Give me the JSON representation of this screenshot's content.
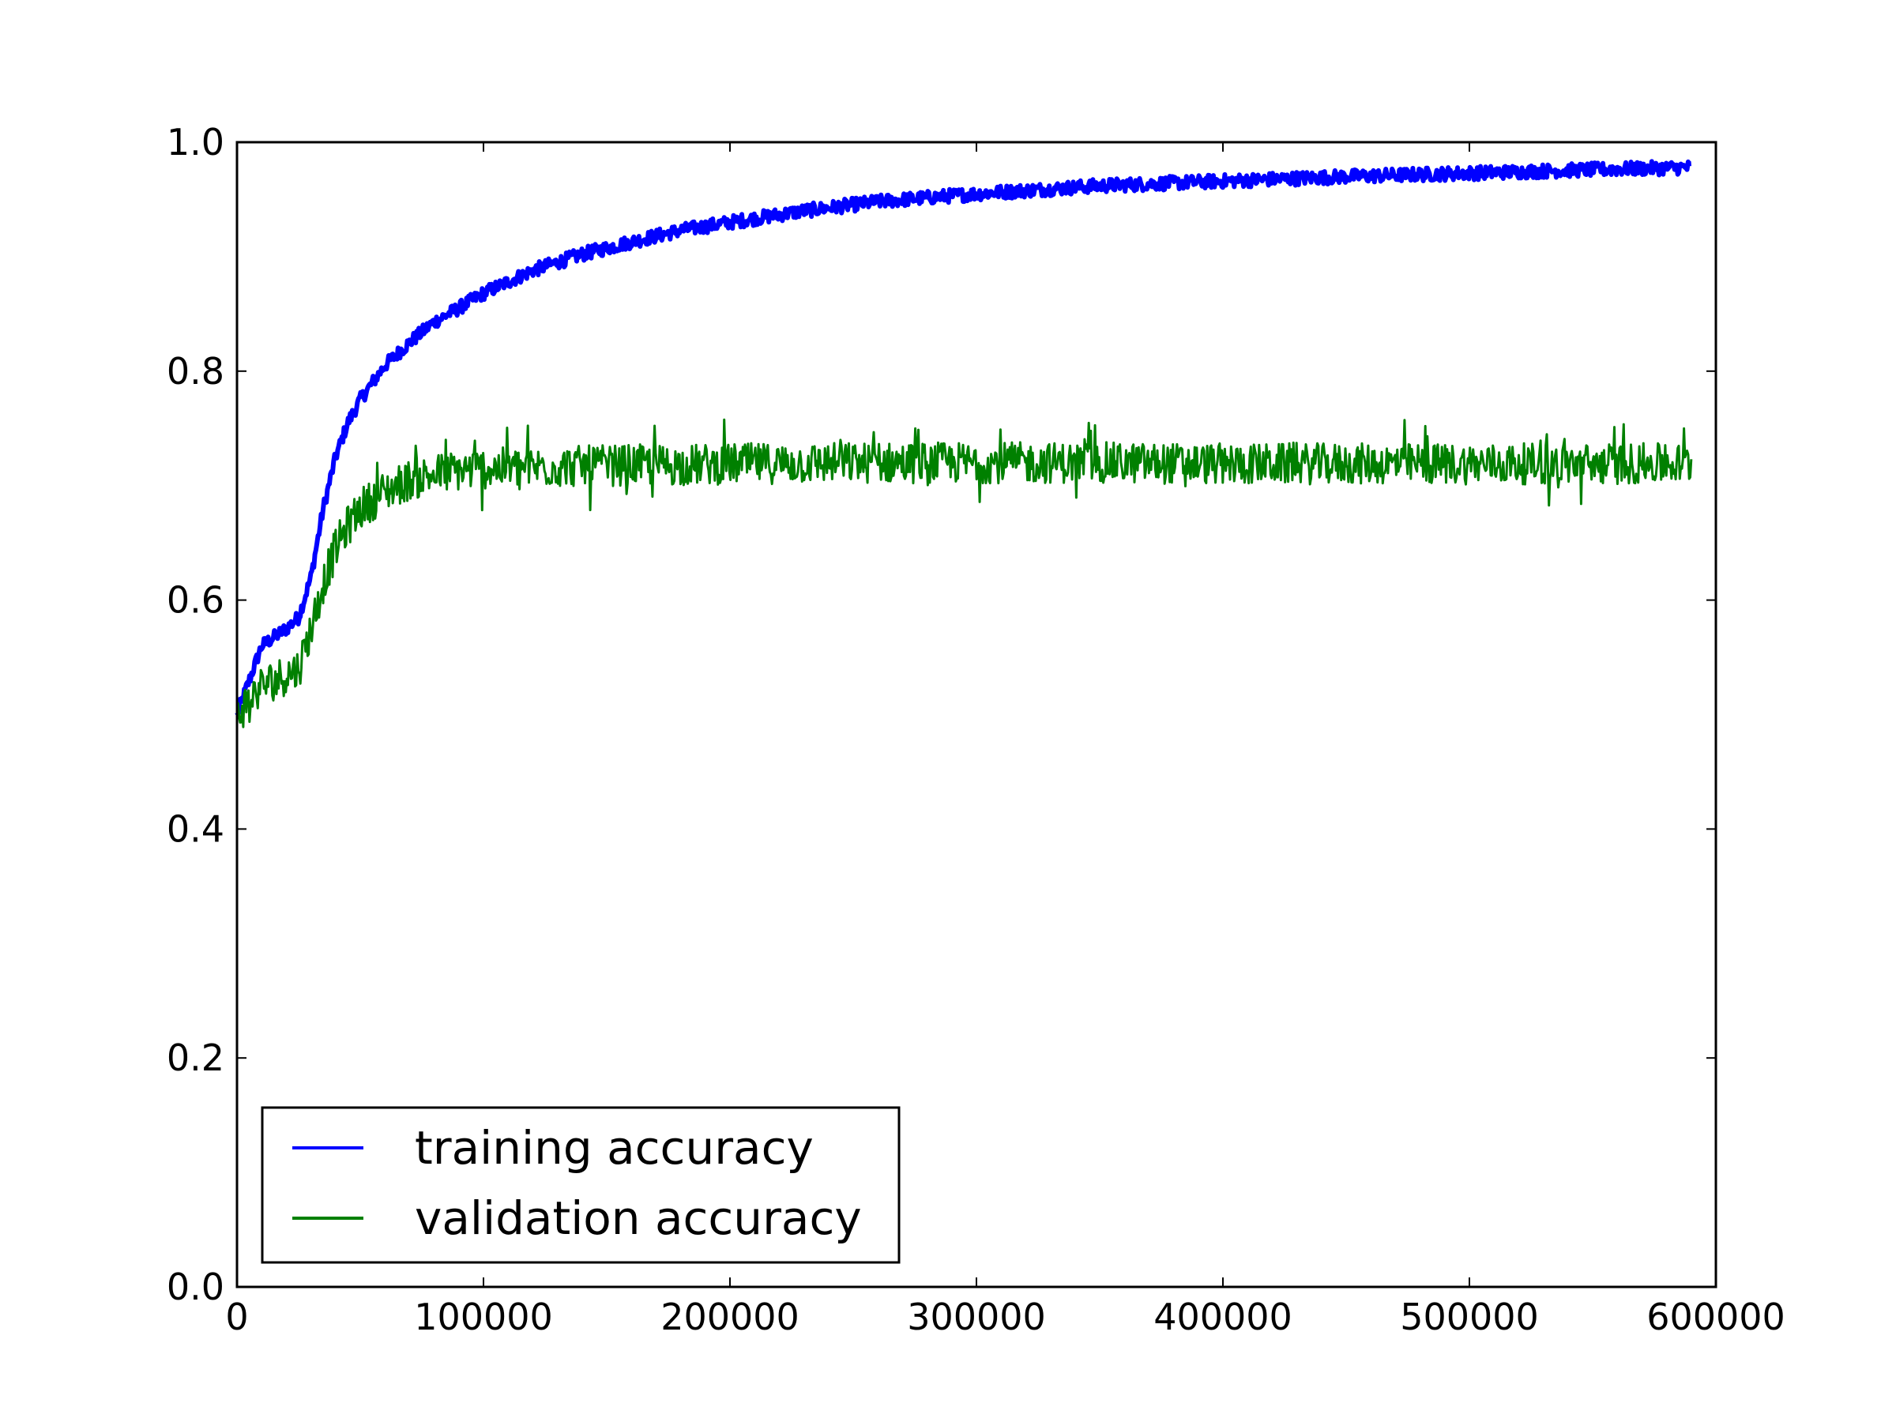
{
  "chart_data": {
    "type": "line",
    "title": "",
    "xlabel": "",
    "ylabel": "",
    "xlim": [
      0,
      600000
    ],
    "ylim": [
      0.0,
      1.0
    ],
    "grid": false,
    "legend_position": "lower-left",
    "x_ticks": [
      "0",
      "100000",
      "200000",
      "300000",
      "400000",
      "500000",
      "600000"
    ],
    "y_ticks": [
      "0.0",
      "0.2",
      "0.4",
      "0.6",
      "0.8",
      "1.0"
    ],
    "series": [
      {
        "name": "training accuracy",
        "color": "#0000ff",
        "x": [
          0,
          10000,
          20000,
          25000,
          30000,
          35000,
          40000,
          45000,
          50000,
          60000,
          70000,
          80000,
          90000,
          100000,
          120000,
          140000,
          160000,
          180000,
          200000,
          230000,
          260000,
          300000,
          350000,
          400000,
          450000,
          500000,
          550000,
          590000
        ],
        "y": [
          0.5,
          0.56,
          0.575,
          0.585,
          0.62,
          0.68,
          0.725,
          0.755,
          0.775,
          0.805,
          0.825,
          0.843,
          0.855,
          0.868,
          0.888,
          0.902,
          0.913,
          0.923,
          0.93,
          0.94,
          0.948,
          0.955,
          0.962,
          0.966,
          0.97,
          0.973,
          0.976,
          0.978
        ]
      },
      {
        "name": "validation accuracy",
        "color": "#008000",
        "x": [
          0,
          10000,
          20000,
          25000,
          30000,
          35000,
          40000,
          45000,
          50000,
          60000,
          70000,
          80000,
          90000,
          100000,
          120000,
          140000,
          160000,
          180000,
          200000,
          250000,
          300000,
          350000,
          400000,
          450000,
          500000,
          550000,
          590000
        ],
        "y": [
          0.5,
          0.525,
          0.535,
          0.54,
          0.575,
          0.615,
          0.645,
          0.665,
          0.68,
          0.695,
          0.705,
          0.71,
          0.713,
          0.715,
          0.716,
          0.717,
          0.718,
          0.718,
          0.719,
          0.72,
          0.72,
          0.72,
          0.719,
          0.719,
          0.719,
          0.719,
          0.719
        ]
      }
    ]
  }
}
